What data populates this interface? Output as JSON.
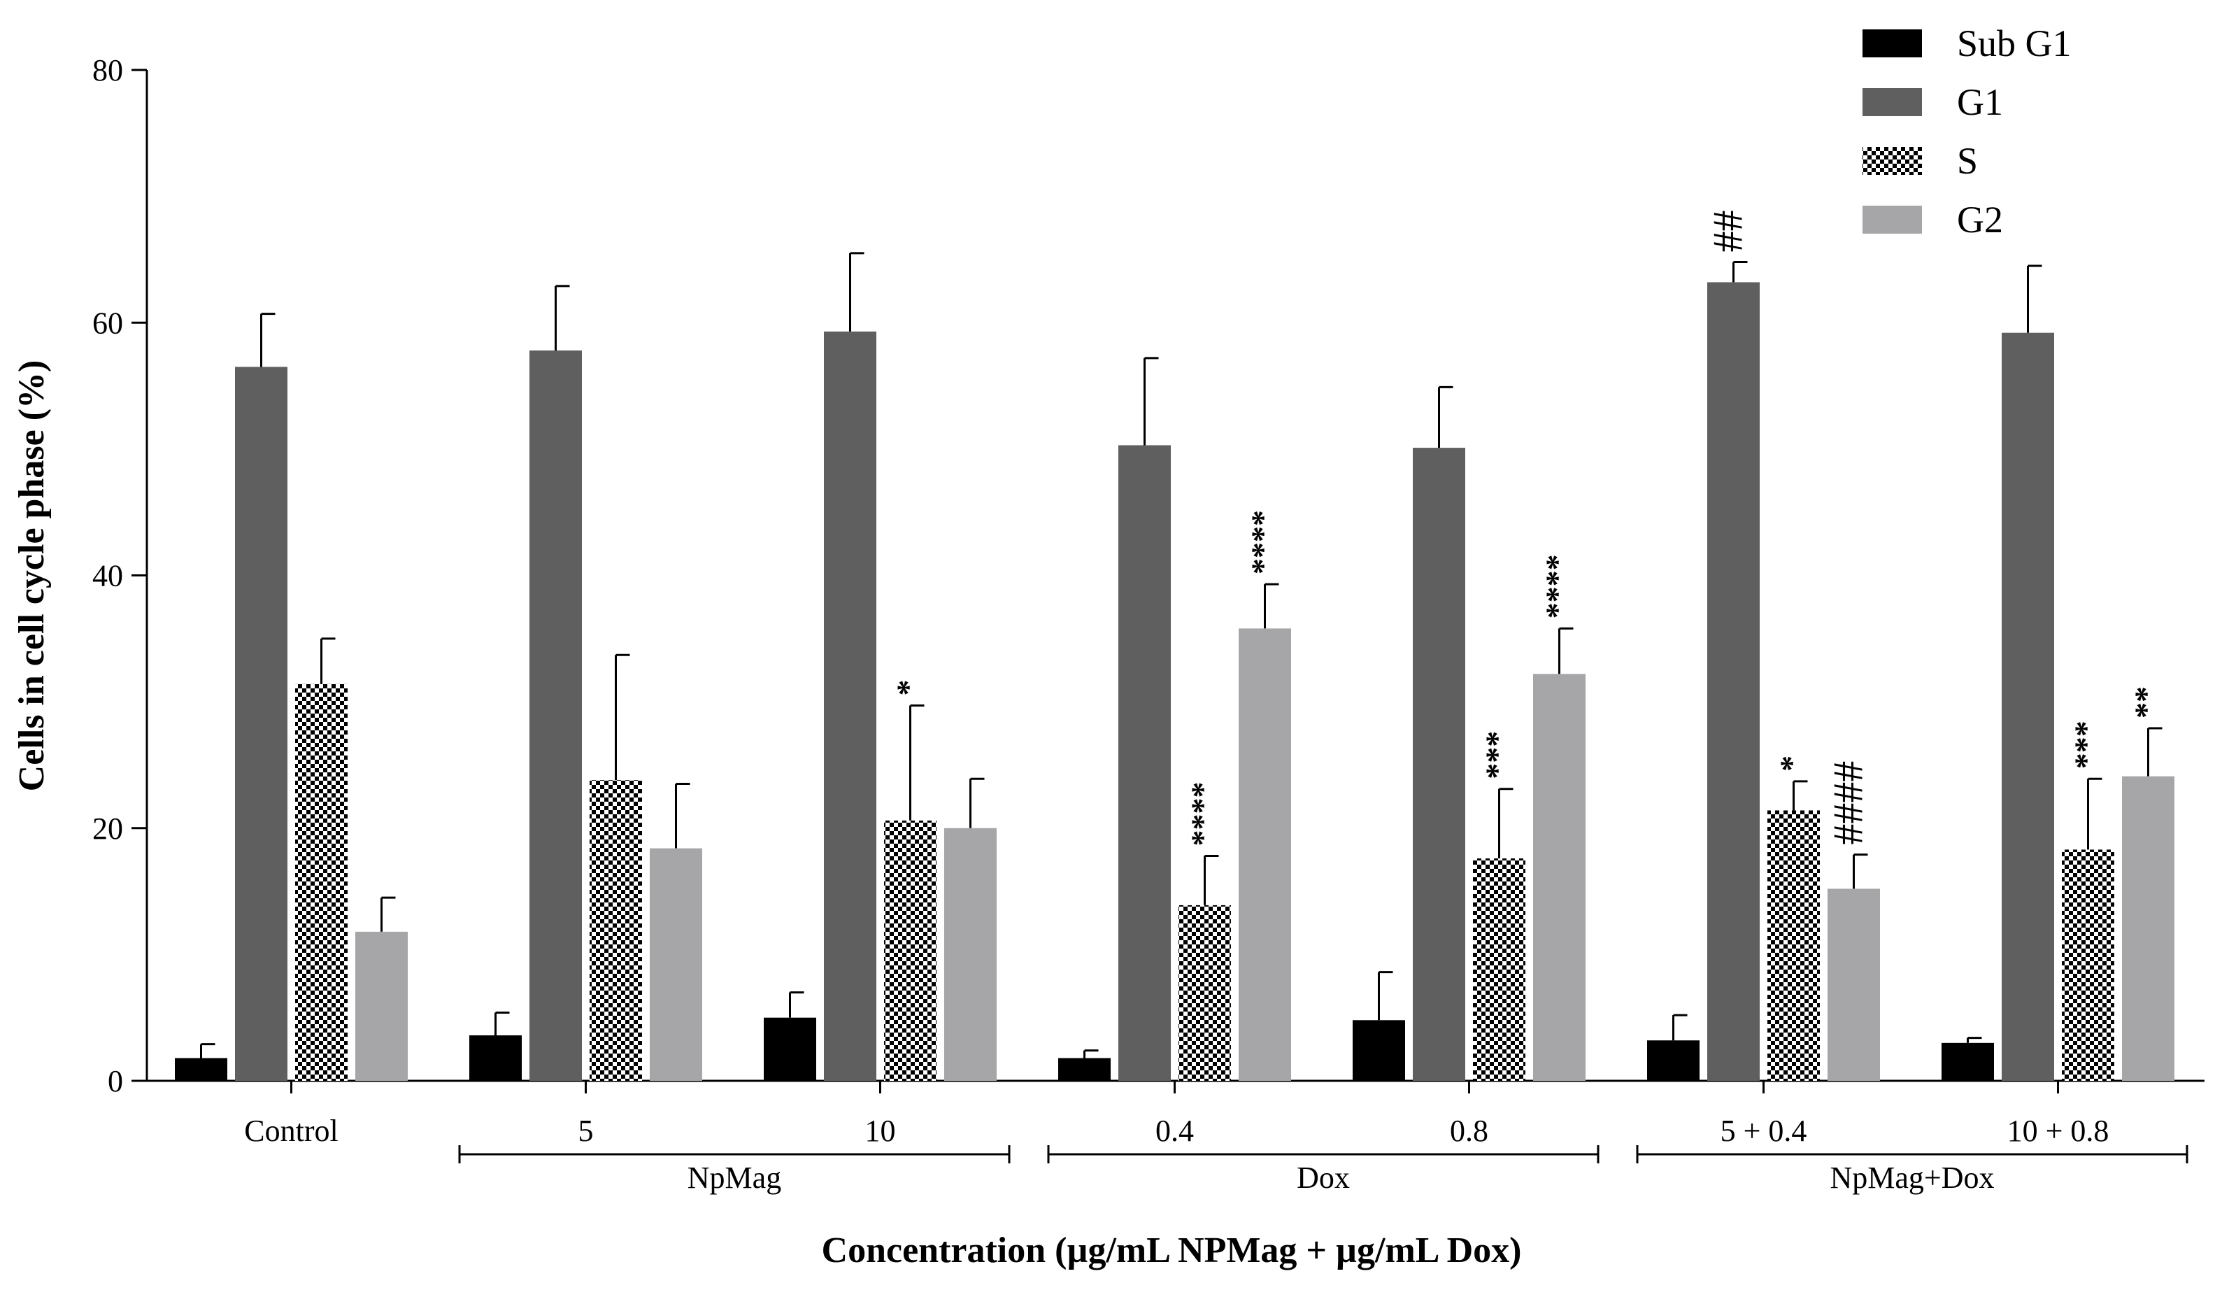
{
  "chart_data": {
    "type": "bar",
    "ylabel": "Cells in cell cycle phase (%)",
    "xlabel": "Concentration (µg/mL NPMag + µg/mL Dox)",
    "ylim": [
      0,
      80
    ],
    "yticks": [
      0,
      20,
      40,
      60,
      80
    ],
    "categories": [
      "Control",
      "5",
      "10",
      "0.4",
      "0.8",
      "5 + 0.4",
      "10 + 0.8"
    ],
    "group_brackets": [
      {
        "label": "NpMag",
        "from": 1,
        "to": 2
      },
      {
        "label": "Dox",
        "from": 3,
        "to": 4
      },
      {
        "label": "NpMag+Dox",
        "from": 5,
        "to": 6
      }
    ],
    "legend_position": "top-right",
    "series": [
      {
        "name": "Sub G1",
        "color": "#000000",
        "pattern": "solid",
        "values": [
          1.8,
          3.6,
          5.0,
          1.8,
          4.8,
          3.2,
          3.0
        ],
        "errors": [
          1.1,
          1.8,
          2.0,
          0.6,
          3.8,
          2.0,
          0.4
        ],
        "annotations": [
          "",
          "",
          "",
          "",
          "",
          "",
          ""
        ]
      },
      {
        "name": "G1",
        "color": "#5f5f5f",
        "pattern": "solid",
        "values": [
          56.5,
          57.8,
          59.3,
          50.3,
          50.1,
          63.2,
          59.2
        ],
        "errors": [
          4.2,
          5.1,
          6.2,
          6.9,
          4.8,
          1.6,
          5.3
        ],
        "annotations": [
          "",
          "",
          "",
          "",
          "",
          "##",
          ""
        ]
      },
      {
        "name": "S",
        "color": "#000000",
        "pattern": "checker",
        "values": [
          31.4,
          23.8,
          20.6,
          13.9,
          17.6,
          21.4,
          18.3
        ],
        "errors": [
          3.6,
          9.9,
          9.1,
          3.9,
          5.5,
          2.3,
          5.6
        ],
        "annotations": [
          "",
          "",
          "*",
          "****",
          "***",
          "*",
          "***"
        ]
      },
      {
        "name": "G2",
        "color": "#a6a6a8",
        "pattern": "solid",
        "values": [
          11.8,
          18.4,
          20.0,
          35.8,
          32.2,
          15.2,
          24.1
        ],
        "errors": [
          2.7,
          5.1,
          3.9,
          3.5,
          3.6,
          2.7,
          3.8
        ],
        "annotations": [
          "",
          "",
          "",
          "****",
          "****",
          "####",
          "**"
        ]
      }
    ]
  }
}
